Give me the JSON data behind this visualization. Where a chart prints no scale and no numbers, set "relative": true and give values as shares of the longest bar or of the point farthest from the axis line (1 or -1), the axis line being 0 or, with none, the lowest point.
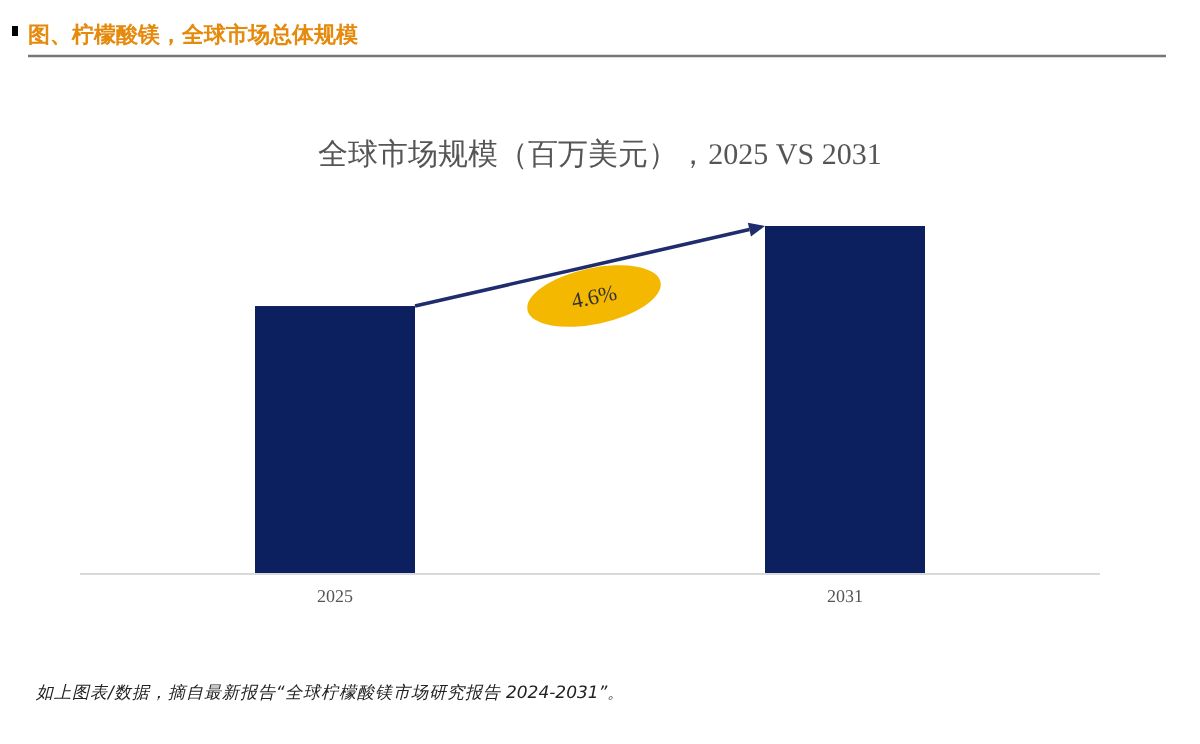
{
  "chart_data": {
    "type": "bar",
    "title": "图、柠檬酸镁，全球市场总体规模",
    "subtitle": "全球市场规模（百万美元），2025 VS 2031",
    "categories": [
      "2025",
      "2031"
    ],
    "values": [
      0.77,
      1
    ],
    "color": "#0c1f5e",
    "relative": true,
    "annotations": [
      "4.6%",
      "如上图表/数据，摘自最新报告“全球柠檬酸镁市场研究报告 2024-2031”。"
    ]
  }
}
